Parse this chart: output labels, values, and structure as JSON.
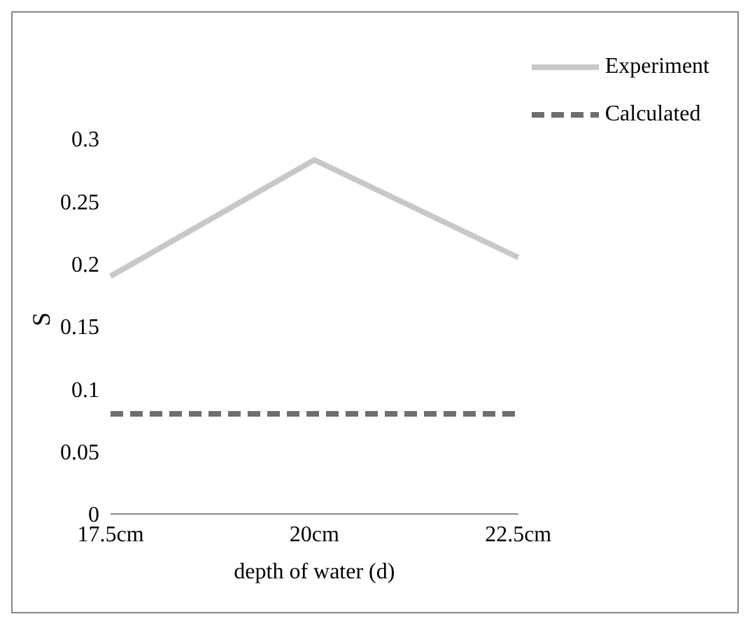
{
  "chart_data": {
    "type": "line",
    "xlabel": "depth of water (d)",
    "ylabel": "S",
    "categories": [
      "17.5cm",
      "20cm",
      "22.5cm"
    ],
    "series": [
      {
        "name": "Experiment",
        "color": "#c8c8c8",
        "values": [
          0.19,
          0.283,
          0.205
        ],
        "line_style": "solid"
      },
      {
        "name": "Calculated",
        "color": "#6e6e6e",
        "values": [
          0.08,
          0.08,
          0.08
        ],
        "line_style": "dashed"
      }
    ],
    "ylim": [
      0,
      0.3
    ],
    "yticks": [
      0,
      0.05,
      0.1,
      0.15,
      0.2,
      0.25,
      0.3
    ],
    "grid": false,
    "legend": "top right",
    "marker": "none"
  }
}
